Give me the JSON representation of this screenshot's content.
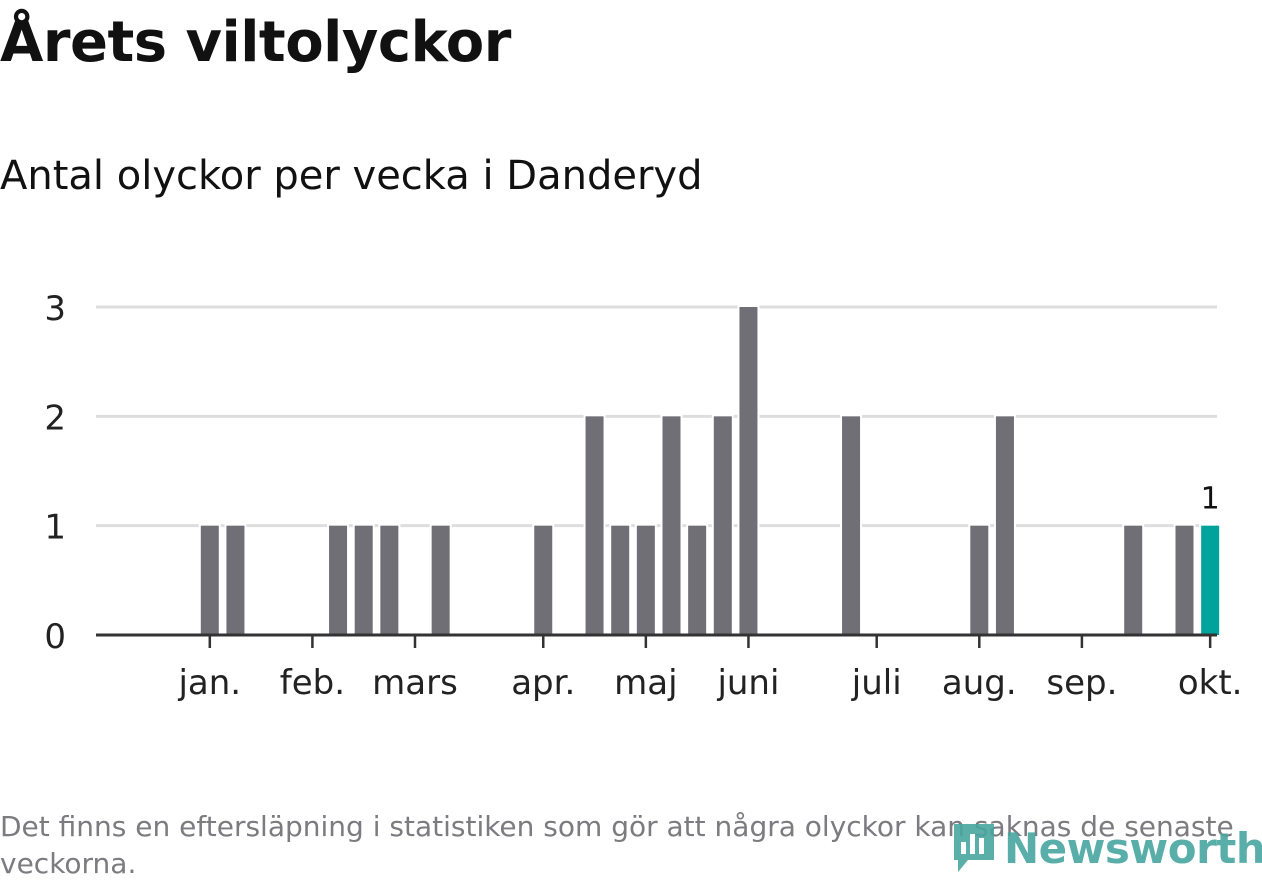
{
  "title": "Årets viltolyckor",
  "subtitle": "Antal olyckor per vecka i Danderyd",
  "footnote": "Det finns en eftersläpning i statistiken som gör att några olyckor kan saknas de senaste veckorna.",
  "brand": {
    "name": "Newsworthy",
    "icon": "newsworthy-logo-icon",
    "color": "#48a6a0"
  },
  "chart_data": {
    "type": "bar",
    "title": "",
    "xlabel": "",
    "ylabel": "",
    "ylim": [
      0,
      3
    ],
    "yticks": [
      "0",
      "1",
      "2",
      "3"
    ],
    "grid": true,
    "x_month_labels": [
      "jan.",
      "feb.",
      "mars",
      "apr.",
      "maj",
      "juni",
      "juli",
      "aug.",
      "sep.",
      "okt."
    ],
    "x_month_tick_weeks": [
      3,
      7,
      11,
      16,
      20,
      24,
      29,
      33,
      37,
      42
    ],
    "weeks": [
      1,
      2,
      3,
      4,
      5,
      6,
      7,
      8,
      9,
      10,
      11,
      12,
      13,
      14,
      15,
      16,
      17,
      18,
      19,
      20,
      21,
      22,
      23,
      24,
      25,
      26,
      27,
      28,
      29,
      30,
      31,
      32,
      33,
      34,
      35,
      36,
      37,
      38,
      39,
      40,
      41,
      42
    ],
    "values": [
      0,
      0,
      1,
      1,
      0,
      0,
      0,
      1,
      1,
      1,
      0,
      1,
      0,
      0,
      0,
      1,
      0,
      2,
      1,
      1,
      2,
      1,
      2,
      3,
      0,
      0,
      0,
      2,
      0,
      0,
      0,
      0,
      1,
      2,
      0,
      0,
      0,
      0,
      1,
      0,
      1,
      1
    ],
    "highlight_index": 41,
    "highlight_label": "1",
    "colors": {
      "bar": "#706f75",
      "highlight": "#00a39b",
      "grid": "#dedede",
      "axis": "#333333",
      "tick_text": "#222222"
    }
  }
}
